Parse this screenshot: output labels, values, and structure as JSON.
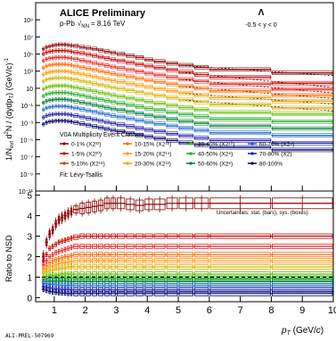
{
  "chart_data": [
    {
      "type": "line",
      "panel": "spectra",
      "title": "ALICE Preliminary",
      "subtitle": "p-Pb",
      "energy_label": "= 8.16 TeV",
      "particle": "Λ",
      "rapidity": "-0.5 < y < 0",
      "ylabel": "1/N_evt d²N / (dy dp_T) (GeV/c)⁻¹",
      "yscale": "log",
      "ylim_exp": [
        -11,
        11
      ],
      "ytick_exp": [
        -11,
        -9,
        -7,
        -5,
        -3,
        -1,
        1,
        3,
        5,
        7,
        9
      ],
      "ytick_labels": [
        "10⁻¹¹",
        "10⁻⁹",
        "10⁻⁷",
        "10⁻⁵",
        "10⁻³",
        "10⁻¹",
        "10",
        "10³",
        "10⁵",
        "10⁷",
        "10⁹"
      ],
      "xlim": [
        0.4,
        10
      ],
      "fit_label": "Fit: Lévy-Tsallis",
      "legend_title": "V0A Multiplicity Event Classes",
      "legend": [
        {
          "label": "0-1% (X2²²)",
          "color": "#8b0000"
        },
        {
          "label": "1-5% (X2²⁰)",
          "color": "#c80000"
        },
        {
          "label": "5-10% (X2¹⁸)",
          "color": "#ee2222"
        },
        {
          "label": "10-15% (X2¹⁶)",
          "color": "#ff6600"
        },
        {
          "label": "15-20% (X2¹⁴)",
          "color": "#ff9900"
        },
        {
          "label": "20-30% (X2¹²)",
          "color": "#d4b000"
        },
        {
          "label": "30-40% (X2¹⁰)",
          "color": "#66bb00"
        },
        {
          "label": "40-50% (X2⁸)",
          "color": "#22aa22"
        },
        {
          "label": "50-60% (X2⁶)",
          "color": "#007a33"
        },
        {
          "label": "60-70% (X2⁴)",
          "color": "#1a66cc"
        },
        {
          "label": "70-80% (X2)",
          "color": "#1a1aaa"
        },
        {
          "label": "80-100%",
          "color": "#000066"
        }
      ],
      "x_bins": [
        0.6,
        0.7,
        0.8,
        0.9,
        1.0,
        1.1,
        1.2,
        1.3,
        1.4,
        1.5,
        1.6,
        1.8,
        2.0,
        2.2,
        2.4,
        2.6,
        2.8,
        3.0,
        3.3,
        3.6,
        3.9,
        4.2,
        4.6,
        5.0,
        5.5,
        6.0,
        8.0,
        10.0
      ],
      "series": [
        {
          "color": "#8b0000",
          "y_exp": [
            5.6,
            5.8,
            5.9,
            6.0,
            6.05,
            6.1,
            6.1,
            6.1,
            6.05,
            6.0,
            5.95,
            5.8,
            5.7,
            5.6,
            5.45,
            5.3,
            5.15,
            5.0,
            4.8,
            4.6,
            4.35,
            4.15,
            3.9,
            3.7,
            3.45,
            3.2,
            2.8
          ]
        },
        {
          "color": "#c80000",
          "y_exp": [
            5.0,
            5.2,
            5.3,
            5.35,
            5.4,
            5.4,
            5.4,
            5.4,
            5.35,
            5.3,
            5.2,
            5.1,
            4.95,
            4.8,
            4.65,
            4.5,
            4.35,
            4.2,
            4.0,
            3.8,
            3.6,
            3.4,
            3.15,
            2.9,
            2.6,
            2.3,
            1.6
          ]
        },
        {
          "color": "#ee2222",
          "y_exp": [
            4.2,
            4.4,
            4.5,
            4.55,
            4.6,
            4.6,
            4.6,
            4.6,
            4.55,
            4.5,
            4.4,
            4.25,
            4.1,
            3.95,
            3.8,
            3.65,
            3.5,
            3.35,
            3.15,
            2.95,
            2.75,
            2.55,
            2.3,
            2.05,
            1.8,
            1.5,
            0.9
          ]
        },
        {
          "color": "#ff6600",
          "y_exp": [
            3.4,
            3.6,
            3.7,
            3.75,
            3.8,
            3.8,
            3.8,
            3.8,
            3.75,
            3.7,
            3.6,
            3.45,
            3.3,
            3.15,
            3.0,
            2.85,
            2.7,
            2.55,
            2.35,
            2.15,
            1.95,
            1.75,
            1.5,
            1.25,
            1.0,
            0.7,
            0.2
          ]
        },
        {
          "color": "#ff9900",
          "y_exp": [
            2.6,
            2.8,
            2.9,
            2.95,
            3.0,
            3.0,
            3.0,
            3.0,
            2.95,
            2.9,
            2.8,
            2.65,
            2.5,
            2.35,
            2.2,
            2.05,
            1.9,
            1.75,
            1.55,
            1.35,
            1.15,
            0.95,
            0.7,
            0.45,
            0.2,
            -0.1,
            -0.5
          ]
        },
        {
          "color": "#d4b000",
          "y_exp": [
            1.8,
            2.0,
            2.1,
            2.15,
            2.2,
            2.2,
            2.2,
            2.2,
            2.15,
            2.1,
            2.0,
            1.85,
            1.7,
            1.55,
            1.4,
            1.25,
            1.1,
            0.95,
            0.75,
            0.55,
            0.35,
            0.15,
            -0.1,
            -0.35,
            -0.6,
            -0.9,
            -1.3
          ]
        },
        {
          "color": "#66bb00",
          "y_exp": [
            0.9,
            1.1,
            1.2,
            1.25,
            1.3,
            1.3,
            1.3,
            1.3,
            1.25,
            1.2,
            1.1,
            0.95,
            0.8,
            0.65,
            0.5,
            0.35,
            0.2,
            0.05,
            -0.15,
            -0.35,
            -0.55,
            -0.75,
            -1.0,
            -1.25,
            -1.5,
            -1.8,
            -2.0
          ]
        },
        {
          "color": "#22aa22",
          "y_exp": [
            0.1,
            0.3,
            0.4,
            0.45,
            0.5,
            0.5,
            0.5,
            0.5,
            0.45,
            0.4,
            0.3,
            0.15,
            0.0,
            -0.15,
            -0.3,
            -0.45,
            -0.6,
            -0.75,
            -0.95,
            -1.15,
            -1.35,
            -1.55,
            -1.8,
            -2.05,
            -2.3,
            -2.6,
            -2.9
          ]
        },
        {
          "color": "#007a33",
          "y_exp": [
            -0.7,
            -0.5,
            -0.4,
            -0.35,
            -0.3,
            -0.3,
            -0.3,
            -0.3,
            -0.35,
            -0.4,
            -0.5,
            -0.65,
            -0.8,
            -0.95,
            -1.1,
            -1.25,
            -1.4,
            -1.55,
            -1.75,
            -1.95,
            -2.15,
            -2.35,
            -2.6,
            -2.85,
            -3.1,
            -3.4,
            -3.7
          ]
        },
        {
          "color": "#1a66cc",
          "y_exp": [
            -1.5,
            -1.3,
            -1.2,
            -1.15,
            -1.1,
            -1.1,
            -1.1,
            -1.1,
            -1.15,
            -1.2,
            -1.3,
            -1.45,
            -1.6,
            -1.75,
            -1.9,
            -2.05,
            -2.2,
            -2.35,
            -2.55,
            -2.75,
            -2.95,
            -3.15,
            -3.4,
            -3.65,
            -3.9,
            -4.2,
            -4.5
          ]
        },
        {
          "color": "#1a1aaa",
          "y_exp": [
            -2.4,
            -2.2,
            -2.1,
            -2.05,
            -2.0,
            -2.0,
            -2.0,
            -2.0,
            -2.05,
            -2.1,
            -2.2,
            -2.35,
            -2.5,
            -2.65,
            -2.8,
            -2.95,
            -3.1,
            -3.25,
            -3.45,
            -3.65,
            -3.85,
            -4.05,
            -4.3,
            -4.55,
            -4.8,
            -5.1,
            -5.4
          ]
        },
        {
          "color": "#000066",
          "y_exp": [
            -3.2,
            -3.0,
            -2.9,
            -2.85,
            -2.8,
            -2.8,
            -2.8,
            -2.8,
            -2.85,
            -2.9,
            -3.0,
            -3.15,
            -3.3,
            -3.45,
            -3.6,
            -3.75,
            -3.9,
            -4.05,
            -4.25,
            -4.45,
            -4.65,
            -4.85,
            -5.1,
            -5.35,
            -5.6,
            -5.9,
            -6.2
          ]
        }
      ]
    },
    {
      "type": "line",
      "panel": "ratio",
      "ylabel": "Ratio to NSD",
      "xlabel": "p_T (GeV/c)",
      "ylim": [
        -0.2,
        5.2
      ],
      "yticks": [
        0,
        1,
        2,
        3,
        4,
        5
      ],
      "xlim": [
        0.4,
        10
      ],
      "xticks": [
        1,
        2,
        3,
        4,
        5,
        6,
        7,
        8,
        9,
        10
      ],
      "annotation": "Uncertainties: stat. (bars), sys. (boxes)",
      "x_bins": [
        0.6,
        0.7,
        0.8,
        0.9,
        1.0,
        1.1,
        1.2,
        1.3,
        1.4,
        1.5,
        1.6,
        1.8,
        2.0,
        2.2,
        2.4,
        2.6,
        2.8,
        3.0,
        3.3,
        3.6,
        3.9,
        4.2,
        4.6,
        5.0,
        5.5,
        6.0,
        8.0,
        10.0
      ],
      "series": [
        {
          "color": "#8b0000",
          "values": [
            2.0,
            2.7,
            3.1,
            3.3,
            3.6,
            3.8,
            3.9,
            4.0,
            4.1,
            4.2,
            4.3,
            4.35,
            4.4,
            4.45,
            4.5,
            4.6,
            4.6,
            4.6,
            4.55,
            4.5,
            4.55,
            4.55,
            4.6,
            4.6,
            4.6,
            4.6,
            4.6
          ]
        },
        {
          "color": "#c80000",
          "values": [
            1.8,
            2.1,
            2.4,
            2.5,
            2.6,
            2.7,
            2.75,
            2.8,
            2.85,
            2.9,
            2.95,
            3.0,
            3.0,
            3.0,
            3.0,
            3.0,
            3.0,
            3.0,
            3.0,
            3.0,
            3.0,
            3.0,
            3.0,
            3.0,
            3.0,
            3.0,
            3.0
          ]
        },
        {
          "color": "#ee2222",
          "values": [
            1.6,
            1.8,
            2.0,
            2.1,
            2.2,
            2.25,
            2.3,
            2.35,
            2.4,
            2.45,
            2.5,
            2.5,
            2.5,
            2.5,
            2.5,
            2.5,
            2.5,
            2.5,
            2.5,
            2.5,
            2.5,
            2.5,
            2.5,
            2.5,
            2.5,
            2.5,
            2.5
          ]
        },
        {
          "color": "#ff6600",
          "values": [
            1.4,
            1.55,
            1.7,
            1.8,
            1.85,
            1.9,
            1.95,
            2.0,
            2.0,
            2.05,
            2.1,
            2.1,
            2.1,
            2.1,
            2.1,
            2.1,
            2.1,
            2.1,
            2.1,
            2.1,
            2.1,
            2.1,
            2.1,
            2.1,
            2.1,
            2.1,
            2.1
          ]
        },
        {
          "color": "#ff9900",
          "values": [
            1.3,
            1.4,
            1.5,
            1.55,
            1.6,
            1.65,
            1.7,
            1.7,
            1.75,
            1.75,
            1.8,
            1.8,
            1.8,
            1.8,
            1.8,
            1.8,
            1.8,
            1.8,
            1.8,
            1.8,
            1.8,
            1.8,
            1.8,
            1.8,
            1.8,
            1.8,
            1.8
          ]
        },
        {
          "color": "#d4b000",
          "values": [
            1.2,
            1.25,
            1.3,
            1.35,
            1.4,
            1.4,
            1.45,
            1.45,
            1.5,
            1.5,
            1.5,
            1.5,
            1.5,
            1.5,
            1.5,
            1.5,
            1.5,
            1.5,
            1.5,
            1.5,
            1.5,
            1.5,
            1.5,
            1.5,
            1.5,
            1.5,
            1.5
          ]
        },
        {
          "color": "#66bb00",
          "values": [
            1.0,
            1.05,
            1.1,
            1.1,
            1.1,
            1.1,
            1.15,
            1.15,
            1.15,
            1.15,
            1.15,
            1.15,
            1.15,
            1.15,
            1.15,
            1.15,
            1.15,
            1.15,
            1.15,
            1.15,
            1.15,
            1.15,
            1.15,
            1.15,
            1.15,
            1.15,
            1.15
          ]
        },
        {
          "color": "#22aa22",
          "values": [
            0.9,
            0.92,
            0.95,
            0.95,
            0.95,
            0.95,
            0.95,
            0.95,
            0.95,
            0.95,
            0.95,
            0.95,
            0.95,
            0.95,
            0.95,
            0.95,
            0.95,
            0.95,
            0.95,
            0.95,
            0.95,
            0.95,
            0.95,
            0.95,
            0.95,
            0.95,
            0.95
          ]
        },
        {
          "color": "#007a33",
          "values": [
            0.8,
            0.8,
            0.8,
            0.8,
            0.8,
            0.8,
            0.8,
            0.8,
            0.78,
            0.78,
            0.78,
            0.78,
            0.78,
            0.78,
            0.78,
            0.78,
            0.78,
            0.78,
            0.78,
            0.78,
            0.78,
            0.78,
            0.78,
            0.78,
            0.78,
            0.78,
            0.78
          ]
        },
        {
          "color": "#1a66cc",
          "values": [
            0.7,
            0.68,
            0.65,
            0.65,
            0.62,
            0.62,
            0.6,
            0.6,
            0.6,
            0.6,
            0.58,
            0.58,
            0.58,
            0.58,
            0.58,
            0.58,
            0.58,
            0.58,
            0.58,
            0.58,
            0.58,
            0.58,
            0.58,
            0.58,
            0.58,
            0.58,
            0.58
          ]
        },
        {
          "color": "#1a1aaa",
          "values": [
            0.55,
            0.5,
            0.48,
            0.45,
            0.42,
            0.42,
            0.4,
            0.4,
            0.4,
            0.38,
            0.38,
            0.38,
            0.38,
            0.38,
            0.38,
            0.38,
            0.38,
            0.38,
            0.38,
            0.38,
            0.38,
            0.38,
            0.38,
            0.38,
            0.38,
            0.38,
            0.38
          ]
        },
        {
          "color": "#000066",
          "values": [
            0.4,
            0.35,
            0.3,
            0.28,
            0.26,
            0.24,
            0.22,
            0.22,
            0.2,
            0.2,
            0.2,
            0.2,
            0.2,
            0.2,
            0.2,
            0.2,
            0.2,
            0.2,
            0.2,
            0.2,
            0.2,
            0.2,
            0.2,
            0.2,
            0.2,
            0.2,
            0.2
          ]
        }
      ]
    }
  ],
  "watermark": "ALI-PREL-507969"
}
